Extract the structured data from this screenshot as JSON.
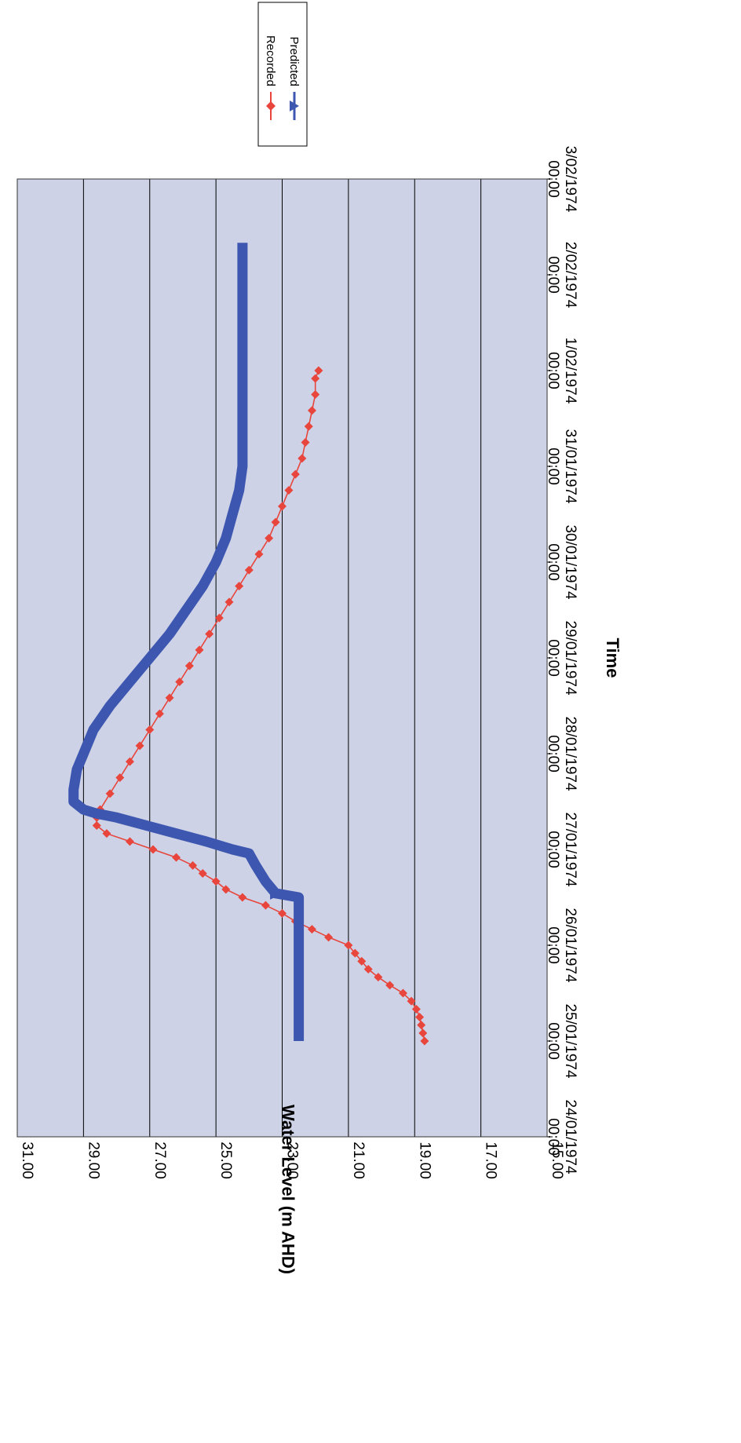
{
  "chart_data": {
    "type": "line",
    "xlabel": "Time",
    "ylabel": "Water Level (m AHD)",
    "ylim": [
      15,
      31
    ],
    "yticks": [
      "15.00",
      "17.00",
      "19.00",
      "21.00",
      "23.00",
      "25.00",
      "27.00",
      "29.00",
      "31.00"
    ],
    "xlim": [
      "24/01/1974 00:00",
      "3/02/1974 00:00"
    ],
    "xticks": [
      {
        "date": "24/01/1974",
        "time": "00:00"
      },
      {
        "date": "25/01/1974",
        "time": "00:00"
      },
      {
        "date": "26/01/1974",
        "time": "00:00"
      },
      {
        "date": "27/01/1974",
        "time": "00:00"
      },
      {
        "date": "28/01/1974",
        "time": "00:00"
      },
      {
        "date": "29/01/1974",
        "time": "00:00"
      },
      {
        "date": "30/01/1974",
        "time": "00:00"
      },
      {
        "date": "31/01/1974",
        "time": "00:00"
      },
      {
        "date": "1/02/1974",
        "time": "00:00"
      },
      {
        "date": "2/02/1974",
        "time": "00:00"
      },
      {
        "date": "3/02/1974",
        "time": "00:00"
      }
    ],
    "grid": "horizontal",
    "orientation": "rotated 90° clockwise",
    "legend_position": "top-right",
    "series": [
      {
        "name": "Recorded",
        "color": "#e8453c",
        "marker": "diamond",
        "points": [
          [
            "25/01/1974 00:00",
            18.7
          ],
          [
            "25/01/1974 02:00",
            18.75
          ],
          [
            "25/01/1974 04:00",
            18.8
          ],
          [
            "25/01/1974 06:00",
            18.85
          ],
          [
            "25/01/1974 08:00",
            18.95
          ],
          [
            "25/01/1974 10:00",
            19.1
          ],
          [
            "25/01/1974 12:00",
            19.35
          ],
          [
            "25/01/1974 14:00",
            19.75
          ],
          [
            "25/01/1974 16:00",
            20.1
          ],
          [
            "25/01/1974 18:00",
            20.4
          ],
          [
            "25/01/1974 20:00",
            20.6
          ],
          [
            "25/01/1974 22:00",
            20.8
          ],
          [
            "26/01/1974 00:00",
            21.0
          ],
          [
            "26/01/1974 02:00",
            21.6
          ],
          [
            "26/01/1974 04:00",
            22.1
          ],
          [
            "26/01/1974 06:00",
            22.6
          ],
          [
            "26/01/1974 08:00",
            23.0
          ],
          [
            "26/01/1974 10:00",
            23.5
          ],
          [
            "26/01/1974 12:00",
            24.2
          ],
          [
            "26/01/1974 14:00",
            24.7
          ],
          [
            "26/01/1974 16:00",
            25.0
          ],
          [
            "26/01/1974 18:00",
            25.4
          ],
          [
            "26/01/1974 20:00",
            25.7
          ],
          [
            "26/01/1974 22:00",
            26.2
          ],
          [
            "27/01/1974 00:00",
            26.9
          ],
          [
            "27/01/1974 02:00",
            27.6
          ],
          [
            "27/01/1974 04:00",
            28.3
          ],
          [
            "27/01/1974 06:00",
            28.6
          ],
          [
            "27/01/1974 08:00",
            28.6
          ],
          [
            "27/01/1974 10:00",
            28.5
          ],
          [
            "27/01/1974 14:00",
            28.2
          ],
          [
            "27/01/1974 18:00",
            27.9
          ],
          [
            "27/01/1974 22:00",
            27.6
          ],
          [
            "28/01/1974 02:00",
            27.3
          ],
          [
            "28/01/1974 06:00",
            27.0
          ],
          [
            "28/01/1974 10:00",
            26.7
          ],
          [
            "28/01/1974 14:00",
            26.4
          ],
          [
            "28/01/1974 18:00",
            26.1
          ],
          [
            "28/01/1974 22:00",
            25.8
          ],
          [
            "29/01/1974 02:00",
            25.5
          ],
          [
            "29/01/1974 06:00",
            25.2
          ],
          [
            "29/01/1974 10:00",
            24.9
          ],
          [
            "29/01/1974 14:00",
            24.6
          ],
          [
            "29/01/1974 18:00",
            24.3
          ],
          [
            "29/01/1974 22:00",
            24.0
          ],
          [
            "30/01/1974 02:00",
            23.7
          ],
          [
            "30/01/1974 06:00",
            23.4
          ],
          [
            "30/01/1974 10:00",
            23.2
          ],
          [
            "30/01/1974 14:00",
            23.0
          ],
          [
            "30/01/1974 18:00",
            22.8
          ],
          [
            "30/01/1974 22:00",
            22.6
          ],
          [
            "31/01/1974 02:00",
            22.4
          ],
          [
            "31/01/1974 06:00",
            22.3
          ],
          [
            "31/01/1974 10:00",
            22.2
          ],
          [
            "31/01/1974 14:00",
            22.1
          ],
          [
            "31/01/1974 18:00",
            22.0
          ],
          [
            "31/01/1974 22:00",
            22.0
          ],
          [
            "1/02/1974 00:00",
            21.9
          ]
        ]
      },
      {
        "name": "Predicted",
        "color": "#3d56b0",
        "marker": "triangle",
        "points": [
          [
            "25/01/1974 00:00",
            22.5
          ],
          [
            "25/01/1974 12:00",
            22.5
          ],
          [
            "26/01/1974 00:00",
            22.5
          ],
          [
            "26/01/1974 12:00",
            22.5
          ],
          [
            "26/01/1974 13:00",
            23.2
          ],
          [
            "26/01/1974 16:00",
            23.5
          ],
          [
            "26/01/1974 20:00",
            23.8
          ],
          [
            "26/01/1974 23:00",
            24.0
          ],
          [
            "27/01/1974 00:00",
            24.5
          ],
          [
            "27/01/1974 02:00",
            25.3
          ],
          [
            "27/01/1974 04:00",
            26.2
          ],
          [
            "27/01/1974 06:00",
            27.1
          ],
          [
            "27/01/1974 08:00",
            28.0
          ],
          [
            "27/01/1974 09:00",
            28.6
          ],
          [
            "27/01/1974 10:00",
            29.0
          ],
          [
            "27/01/1974 12:00",
            29.3
          ],
          [
            "27/01/1974 15:00",
            29.3
          ],
          [
            "27/01/1974 20:00",
            29.2
          ],
          [
            "28/01/1974 00:00",
            29.0
          ],
          [
            "28/01/1974 06:00",
            28.7
          ],
          [
            "28/01/1974 12:00",
            28.2
          ],
          [
            "28/01/1974 18:00",
            27.6
          ],
          [
            "29/01/1974 00:00",
            27.0
          ],
          [
            "29/01/1974 06:00",
            26.4
          ],
          [
            "29/01/1974 12:00",
            25.9
          ],
          [
            "29/01/1974 18:00",
            25.4
          ],
          [
            "30/01/1974 00:00",
            25.0
          ],
          [
            "30/01/1974 06:00",
            24.7
          ],
          [
            "30/01/1974 12:00",
            24.5
          ],
          [
            "30/01/1974 18:00",
            24.3
          ],
          [
            "31/01/1974 00:00",
            24.2
          ],
          [
            "31/01/1974 12:00",
            24.2
          ],
          [
            "1/02/1974 00:00",
            24.2
          ],
          [
            "1/02/1974 12:00",
            24.2
          ],
          [
            "2/02/1974 00:00",
            24.2
          ],
          [
            "2/02/1974 08:00",
            24.2
          ]
        ]
      }
    ]
  }
}
